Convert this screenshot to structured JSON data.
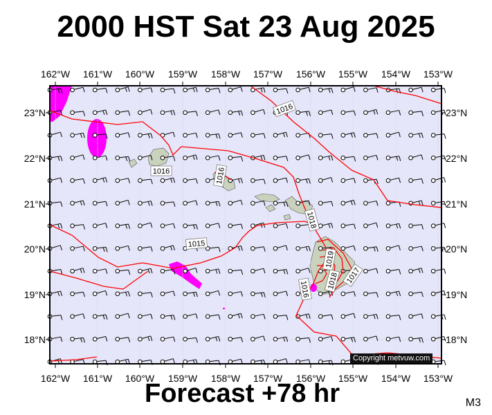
{
  "title": "2000 HST Sat 23 Aug 2025",
  "forecast_label": "Forecast +78 hr",
  "model_code": "M3",
  "copyright": "Copyright metvuw.com",
  "lon_labels": [
    "162°W",
    "161°W",
    "160°W",
    "159°W",
    "158°W",
    "157°W",
    "156°W",
    "155°W",
    "154°W",
    "153°W"
  ],
  "lat_labels": [
    "23°N",
    "22°N",
    "21°N",
    "20°N",
    "19°N",
    "18°N"
  ],
  "isobar_labels": [
    "1016",
    "1016",
    "1016",
    "1015",
    "1018",
    "1019",
    "1017",
    "1018",
    "1016"
  ],
  "colors": {
    "ocean": "#e6e6fa",
    "isobar": "#ff0000",
    "rain": "#ff00ff",
    "land": "#c8d2bc"
  }
}
